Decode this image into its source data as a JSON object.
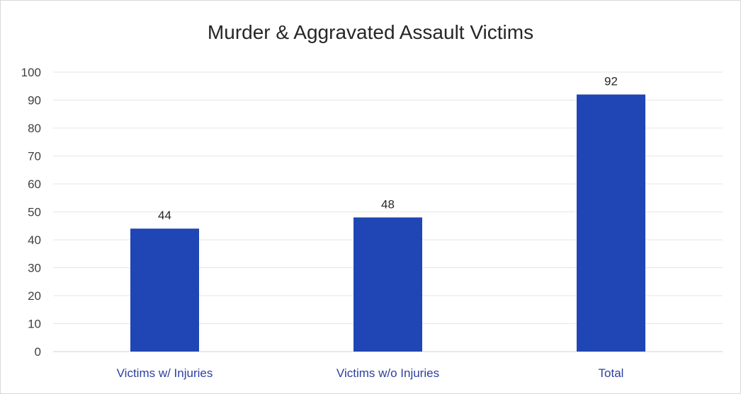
{
  "chart_data": {
    "type": "bar",
    "title": "Murder & Aggravated Assault Victims",
    "categories": [
      "Victims w/ Injuries",
      "Victims w/o Injuries",
      "Total"
    ],
    "values": [
      44,
      48,
      92
    ],
    "data_labels": [
      "44",
      "48",
      "92"
    ],
    "ylim": [
      0,
      100
    ],
    "yticks": [
      "0",
      "10",
      "20",
      "30",
      "40",
      "50",
      "60",
      "70",
      "80",
      "90",
      "100"
    ],
    "xlabel": "",
    "ylabel": "",
    "grid": true,
    "legend": "none",
    "bar_color": "#1f46b4",
    "gridline_color": "#e6e6e6",
    "category_label_color": "#2e3f9f"
  }
}
